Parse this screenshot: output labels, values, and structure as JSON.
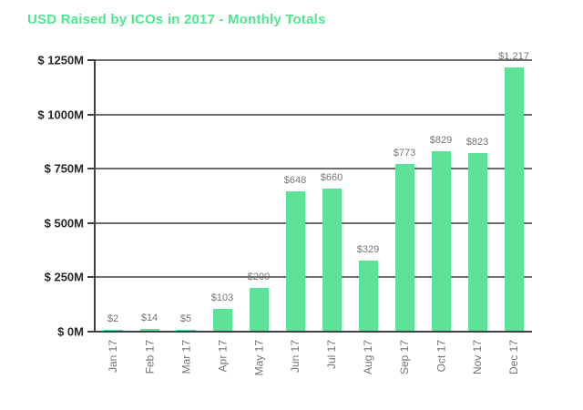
{
  "chart_data": {
    "type": "bar",
    "title": "USD Raised by ICOs in 2017 - Monthly Totals",
    "categories": [
      "Jan 17",
      "Feb 17",
      "Mar 17",
      "Apr 17",
      "May 17",
      "Jun 17",
      "Jul 17",
      "Aug 17",
      "Sep 17",
      "Oct 17",
      "Nov 17",
      "Dec 17"
    ],
    "values": [
      2,
      14,
      5,
      103,
      200,
      648,
      660,
      329,
      773,
      829,
      823,
      1217
    ],
    "bar_labels": [
      "$2",
      "$14",
      "$5",
      "$103",
      "$200",
      "$648",
      "$660",
      "$329",
      "$773",
      "$829",
      "$823",
      "$1,217"
    ],
    "y_ticks": [
      {
        "value": 0,
        "label": "$ 0M"
      },
      {
        "value": 250,
        "label": "$ 250M"
      },
      {
        "value": 500,
        "label": "$ 500M"
      },
      {
        "value": 750,
        "label": "$ 750M"
      },
      {
        "value": 1000,
        "label": "$ 1000M"
      },
      {
        "value": 1250,
        "label": "$ 1250M"
      }
    ],
    "ylim": [
      0,
      1250
    ],
    "xlabel": "",
    "ylabel": "",
    "grid": true,
    "legend": false
  },
  "colors": {
    "background": "#ffffff",
    "title": "#50e591",
    "bar": "#5ee29a",
    "gridline": "#6e6e6e",
    "axis": "#424242",
    "y_tick_label": "#272727",
    "bar_label": "#757575",
    "month_label": "#757575"
  }
}
